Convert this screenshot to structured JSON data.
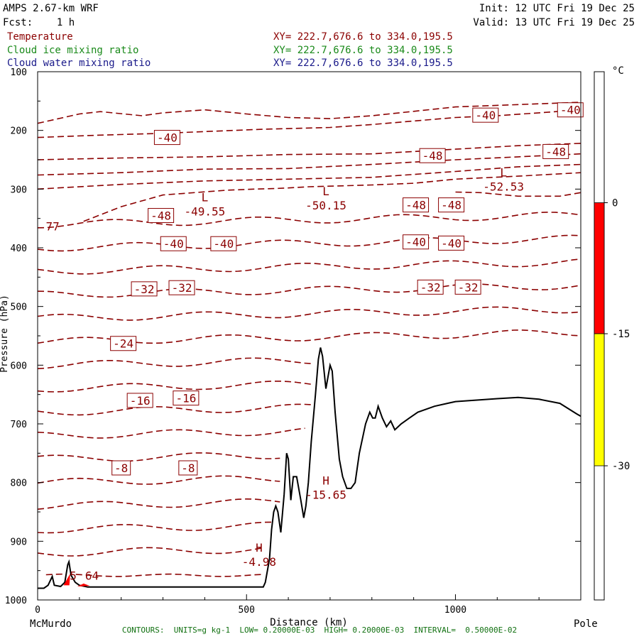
{
  "header": {
    "model": "AMPS 2.67-km WRF",
    "fcst": "Fcst:    1 h",
    "init": "Init: 12 UTC Fri 19 Dec 25",
    "valid": "Valid: 13 UTC Fri 19 Dec 25"
  },
  "fields": [
    {
      "name": "Temperature",
      "xy": "XY= 222.7,676.6 to 334.0,195.5",
      "color": "#8b0000"
    },
    {
      "name": "Cloud ice mixing ratio",
      "xy": "XY= 222.7,676.6 to 334.0,195.5",
      "color": "#1a8a1a"
    },
    {
      "name": "Cloud water mixing ratio",
      "xy": "XY= 222.7,676.6 to 334.0,195.5",
      "color": "#1a1a8a"
    }
  ],
  "footer": "CONTOURS:  UNITS=g kg-1  LOW= 0.20000E-03  HIGH= 0.20000E-03  INTERVAL=  0.50000E-02",
  "chart_data": {
    "type": "contour-cross-section",
    "xlabel": "Distance (km)",
    "ylabel": "Pressure (hPa)",
    "xlim": [
      0,
      1300
    ],
    "ylim": [
      1000,
      100
    ],
    "x_ticks": [
      0,
      500,
      1000
    ],
    "y_ticks": [
      100,
      200,
      300,
      400,
      500,
      600,
      700,
      800,
      900,
      1000
    ],
    "x_endpoints": {
      "left": "McMurdo",
      "right": "Pole"
    },
    "colorbar": {
      "unit": "°C",
      "ticks": [
        0,
        -15,
        -30
      ],
      "bands": [
        {
          "from": 0,
          "to": -15,
          "color": "#ff0000"
        },
        {
          "from": -15,
          "to": -30,
          "color": "#ffff00"
        }
      ]
    },
    "contour_labels": [
      {
        "value": "-40",
        "x": 310,
        "p": 212
      },
      {
        "value": "-40",
        "x": 1072,
        "p": 174
      },
      {
        "value": "-40",
        "x": 1275,
        "p": 165
      },
      {
        "value": "-48",
        "x": 945,
        "p": 243
      },
      {
        "value": "-48",
        "x": 1240,
        "p": 236
      },
      {
        "value": "-48",
        "x": 295,
        "p": 345
      },
      {
        "value": "-48",
        "x": 905,
        "p": 327
      },
      {
        "value": "-48",
        "x": 990,
        "p": 327
      },
      {
        "value": "-40",
        "x": 325,
        "p": 393
      },
      {
        "value": "-40",
        "x": 445,
        "p": 393
      },
      {
        "value": "-40",
        "x": 905,
        "p": 390
      },
      {
        "value": "-40",
        "x": 990,
        "p": 392
      },
      {
        "value": "-32",
        "x": 255,
        "p": 470
      },
      {
        "value": "-32",
        "x": 345,
        "p": 468
      },
      {
        "value": "-32",
        "x": 940,
        "p": 467
      },
      {
        "value": "-32",
        "x": 1030,
        "p": 467
      },
      {
        "value": "-24",
        "x": 205,
        "p": 563
      },
      {
        "value": "-16",
        "x": 245,
        "p": 660
      },
      {
        "value": "-16",
        "x": 355,
        "p": 656
      },
      {
        "value": "-8",
        "x": 200,
        "p": 775
      },
      {
        "value": "-8",
        "x": 360,
        "p": 775
      }
    ],
    "extrema": [
      {
        "kind": "L",
        "value": "-49.55",
        "x": 400,
        "p": 335
      },
      {
        "kind": "L",
        "value": "-50.15",
        "x": 690,
        "p": 325
      },
      {
        "kind": "L",
        "value": "-52.53",
        "x": 1115,
        "p": 293
      },
      {
        "kind": "H",
        "value": "-15.65",
        "x": 690,
        "p": 818
      },
      {
        "kind": "H",
        "value": "-4.98",
        "x": 530,
        "p": 932
      }
    ],
    "edge_labels": [
      {
        "text": "77",
        "x": 36,
        "p": 363
      },
      {
        "text": "5",
        "x": 85,
        "p": 958
      },
      {
        "text": "64",
        "x": 130,
        "p": 958
      }
    ],
    "terrain": [
      [
        0,
        980
      ],
      [
        15,
        980
      ],
      [
        25,
        975
      ],
      [
        35,
        960
      ],
      [
        40,
        975
      ],
      [
        55,
        977
      ],
      [
        65,
        970
      ],
      [
        72,
        940
      ],
      [
        75,
        935
      ],
      [
        80,
        958
      ],
      [
        90,
        970
      ],
      [
        100,
        975
      ],
      [
        120,
        978
      ],
      [
        200,
        978
      ],
      [
        300,
        978
      ],
      [
        400,
        978
      ],
      [
        500,
        978
      ],
      [
        540,
        978
      ],
      [
        545,
        970
      ],
      [
        555,
        930
      ],
      [
        560,
        880
      ],
      [
        565,
        850
      ],
      [
        570,
        840
      ],
      [
        575,
        850
      ],
      [
        582,
        885
      ],
      [
        590,
        820
      ],
      [
        596,
        750
      ],
      [
        600,
        760
      ],
      [
        606,
        830
      ],
      [
        612,
        790
      ],
      [
        620,
        790
      ],
      [
        630,
        830
      ],
      [
        637,
        860
      ],
      [
        642,
        840
      ],
      [
        648,
        800
      ],
      [
        655,
        730
      ],
      [
        665,
        650
      ],
      [
        672,
        590
      ],
      [
        677,
        570
      ],
      [
        682,
        585
      ],
      [
        690,
        640
      ],
      [
        700,
        600
      ],
      [
        705,
        610
      ],
      [
        712,
        680
      ],
      [
        722,
        760
      ],
      [
        730,
        790
      ],
      [
        740,
        810
      ],
      [
        750,
        810
      ],
      [
        760,
        800
      ],
      [
        770,
        750
      ],
      [
        785,
        700
      ],
      [
        795,
        680
      ],
      [
        802,
        690
      ],
      [
        808,
        690
      ],
      [
        815,
        670
      ],
      [
        825,
        690
      ],
      [
        835,
        705
      ],
      [
        845,
        695
      ],
      [
        855,
        710
      ],
      [
        870,
        700
      ],
      [
        890,
        690
      ],
      [
        910,
        680
      ],
      [
        950,
        670
      ],
      [
        1000,
        662
      ],
      [
        1100,
        657
      ],
      [
        1150,
        655
      ],
      [
        1200,
        658
      ],
      [
        1250,
        665
      ],
      [
        1290,
        683
      ],
      [
        1300,
        687
      ]
    ],
    "isotherms_p": [
      920,
      880,
      840,
      800,
      760,
      720,
      680,
      640,
      600,
      560,
      520,
      480,
      440,
      400,
      360
    ],
    "upper_isotherms": [
      [
        [
          0,
          250
        ],
        [
          200,
          247
        ],
        [
          400,
          245
        ],
        [
          600,
          241
        ],
        [
          800,
          240
        ],
        [
          1000,
          232
        ],
        [
          1150,
          226
        ],
        [
          1300,
          222
        ]
      ],
      [
        [
          0,
          276
        ],
        [
          200,
          272
        ],
        [
          400,
          266
        ],
        [
          600,
          265
        ],
        [
          800,
          258
        ],
        [
          1000,
          250
        ],
        [
          1150,
          245
        ],
        [
          1300,
          240
        ]
      ],
      [
        [
          0,
          300
        ],
        [
          200,
          292
        ],
        [
          400,
          286
        ],
        [
          600,
          283
        ],
        [
          800,
          280
        ],
        [
          1000,
          270
        ],
        [
          1150,
          262
        ],
        [
          1300,
          258
        ]
      ],
      [
        [
          110,
          355
        ],
        [
          200,
          330
        ],
        [
          300,
          310
        ],
        [
          450,
          302
        ],
        [
          520,
          300
        ],
        [
          570,
          299
        ],
        [
          600,
          298
        ],
        [
          650,
          296
        ],
        [
          700,
          295
        ],
        [
          800,
          293
        ],
        [
          900,
          290
        ],
        [
          1000,
          283
        ],
        [
          1150,
          278
        ],
        [
          1300,
          272
        ]
      ],
      [
        [
          1000,
          305
        ],
        [
          1060,
          306
        ],
        [
          1150,
          312
        ],
        [
          1250,
          312
        ],
        [
          1300,
          306
        ]
      ],
      [
        [
          0,
          212
        ],
        [
          150,
          208
        ],
        [
          300,
          205
        ],
        [
          400,
          202
        ],
        [
          540,
          198
        ],
        [
          700,
          195
        ],
        [
          800,
          190
        ],
        [
          1000,
          178
        ],
        [
          1100,
          175
        ],
        [
          1200,
          170
        ],
        [
          1300,
          165
        ]
      ],
      [
        [
          0,
          188
        ],
        [
          100,
          172
        ],
        [
          150,
          168
        ],
        [
          250,
          175
        ],
        [
          300,
          170
        ],
        [
          400,
          165
        ],
        [
          500,
          172
        ],
        [
          600,
          178
        ],
        [
          700,
          180
        ],
        [
          800,
          175
        ],
        [
          1000,
          160
        ],
        [
          1300,
          152
        ]
      ]
    ]
  }
}
